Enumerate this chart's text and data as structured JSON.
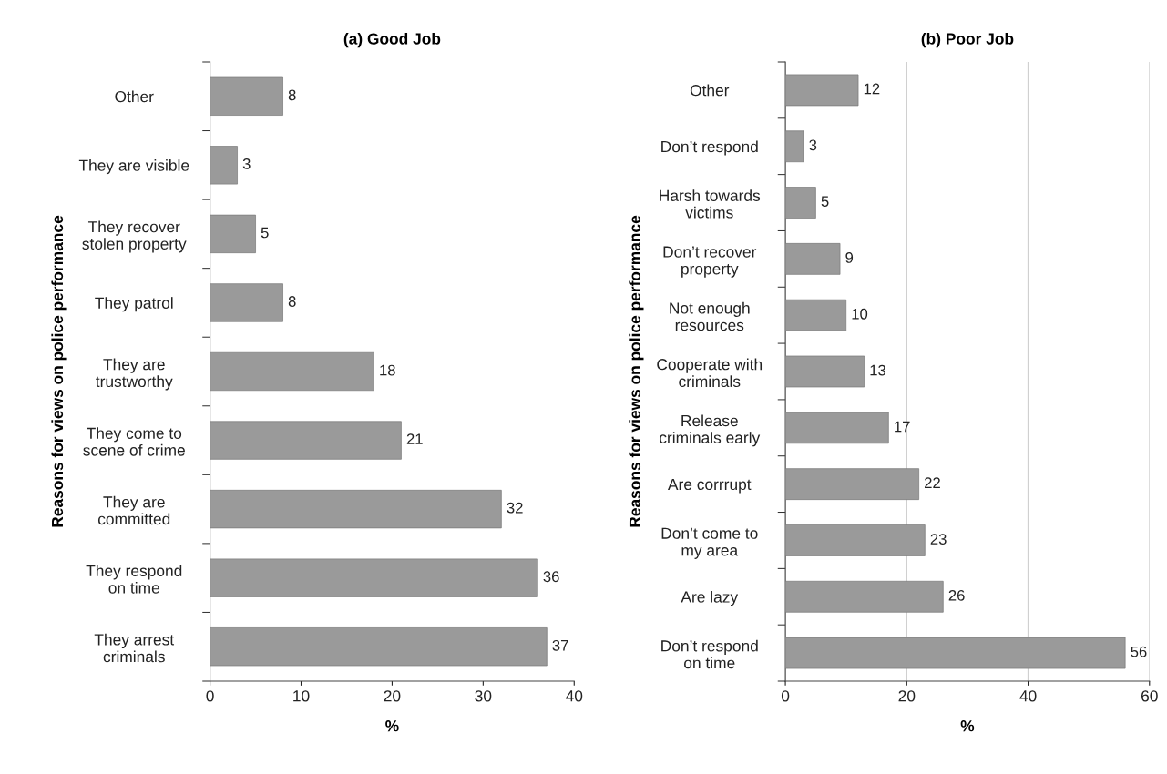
{
  "chart_data": [
    {
      "type": "bar",
      "orientation": "horizontal",
      "title": "(a) Good Job",
      "xlabel": "%",
      "ylabel": "Reasons for views on police performance",
      "categories": [
        "Other",
        "They are visible",
        "They recover\nstolen property",
        "They patrol",
        "They are\ntrustworthy",
        "They come to\nscene of crime",
        "They are\ncommitted",
        "They respond\non time",
        "They arrest\ncriminals"
      ],
      "values": [
        8,
        3,
        5,
        8,
        18,
        21,
        32,
        36,
        37
      ],
      "color": "#9a9a9a",
      "xlim": [
        0,
        40
      ],
      "xticks": [
        0,
        10,
        20,
        30,
        40
      ],
      "grid": false,
      "data_labels": true
    },
    {
      "type": "bar",
      "orientation": "horizontal",
      "title": "(b) Poor Job",
      "xlabel": "%",
      "ylabel": "Reasons for views on police performance",
      "categories": [
        "Other",
        "Don’t respond",
        "Harsh towards\nvictims",
        "Don’t recover\nproperty",
        "Not enough\nresources",
        "Cooperate with\ncriminals",
        "Release\ncriminals early",
        "Are corrrupt",
        "Don’t come to\nmy area",
        "Are lazy",
        "Don’t respond\non time"
      ],
      "values": [
        12,
        3,
        5,
        9,
        10,
        13,
        17,
        22,
        23,
        26,
        56
      ],
      "color": "#9a9a9a",
      "xlim": [
        0,
        60
      ],
      "xticks": [
        0,
        20,
        40,
        60
      ],
      "grid": "x",
      "data_labels": true
    }
  ]
}
